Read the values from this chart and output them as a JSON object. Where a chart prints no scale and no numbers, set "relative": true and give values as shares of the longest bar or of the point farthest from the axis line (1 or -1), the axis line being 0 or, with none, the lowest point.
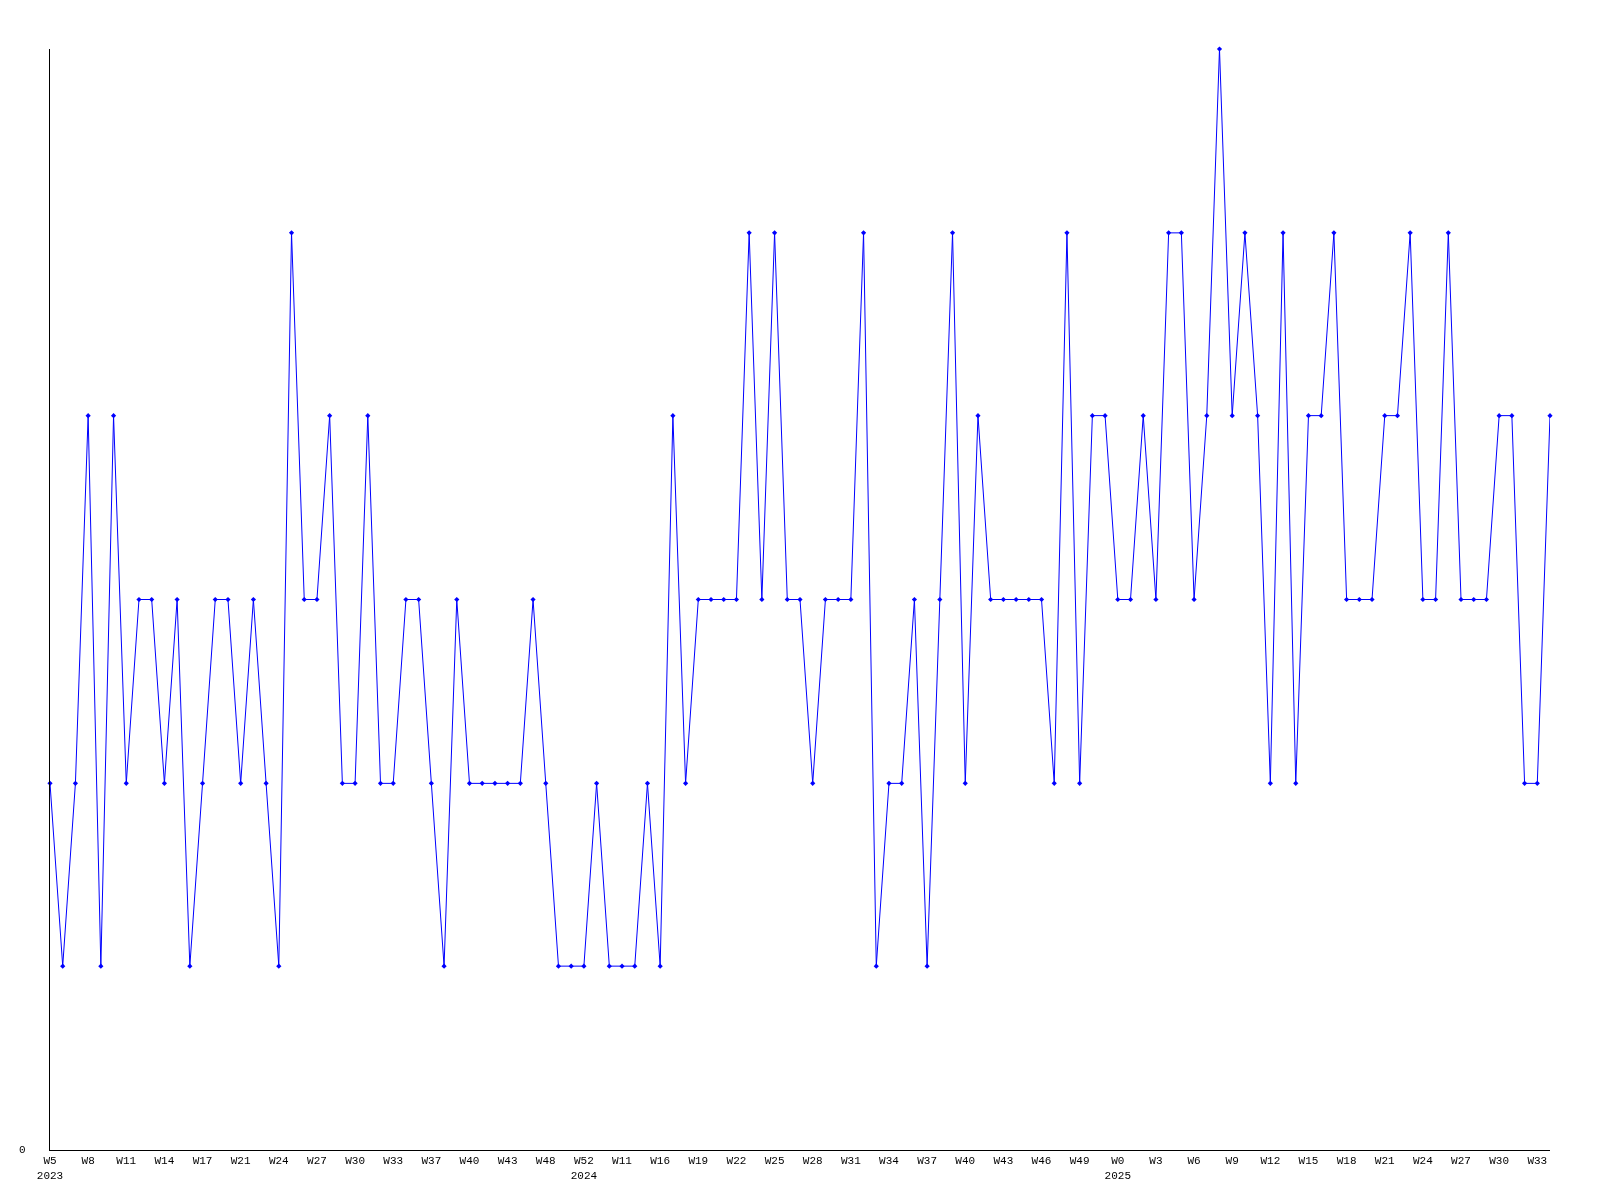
{
  "chart_data": {
    "type": "line",
    "relative": true,
    "grid": false,
    "marker": "diamond",
    "line_style": "solid",
    "annotations": [
      "0"
    ],
    "categories": [
      "W5\n2023",
      null,
      null,
      "W8",
      null,
      null,
      "W11",
      null,
      null,
      "W14",
      null,
      null,
      "W17",
      null,
      null,
      "W21",
      null,
      null,
      "W24",
      null,
      null,
      "W27",
      null,
      null,
      "W30",
      null,
      null,
      "W33",
      null,
      null,
      "W37",
      null,
      null,
      "W40",
      null,
      null,
      "W43",
      null,
      null,
      "W48",
      null,
      null,
      "W52\n2024",
      null,
      null,
      "W11",
      null,
      null,
      "W16",
      null,
      null,
      "W19",
      null,
      null,
      "W22",
      null,
      null,
      "W25",
      null,
      null,
      "W28",
      null,
      null,
      "W31",
      null,
      null,
      "W34",
      null,
      null,
      "W37",
      null,
      null,
      "W40",
      null,
      null,
      "W43",
      null,
      null,
      "W46",
      null,
      null,
      "W49",
      null,
      null,
      "W0\n2025",
      null,
      null,
      "W3",
      null,
      null,
      "W6",
      null,
      null,
      "W9",
      null,
      null,
      "W12",
      null,
      null,
      "W15",
      null,
      null,
      "W18",
      null,
      null,
      "W21",
      null,
      null,
      "W24",
      null,
      null,
      "W27",
      null,
      null,
      "W30",
      null,
      null,
      "W33",
      null
    ],
    "series": [
      {
        "color": "#0000ff",
        "values": [
          0.333,
          0.167,
          0.333,
          0.667,
          0.167,
          0.667,
          0.333,
          0.5,
          0.5,
          0.333,
          0.5,
          0.167,
          0.333,
          0.5,
          0.5,
          0.333,
          0.5,
          0.333,
          0.167,
          0.833,
          0.5,
          0.5,
          0.667,
          0.333,
          0.333,
          0.667,
          0.333,
          0.333,
          0.5,
          0.5,
          0.333,
          0.167,
          0.5,
          0.333,
          0.333,
          0.333,
          0.333,
          0.333,
          0.5,
          0.333,
          0.167,
          0.167,
          0.167,
          0.333,
          0.167,
          0.167,
          0.167,
          0.333,
          0.167,
          0.667,
          0.333,
          0.5,
          0.5,
          0.5,
          0.5,
          0.833,
          0.5,
          0.833,
          0.5,
          0.5,
          0.333,
          0.5,
          0.5,
          0.5,
          0.833,
          0.167,
          0.333,
          0.333,
          0.5,
          0.167,
          0.5,
          0.833,
          0.333,
          0.667,
          0.5,
          0.5,
          0.5,
          0.5,
          0.5,
          0.333,
          0.833,
          0.333,
          0.667,
          0.667,
          0.5,
          0.5,
          0.667,
          0.5,
          0.833,
          0.833,
          0.5,
          0.667,
          1,
          0.667,
          0.833,
          0.667,
          0.333,
          0.833,
          0.333,
          0.667,
          0.667,
          0.833,
          0.5,
          0.5,
          0.5,
          0.667,
          0.667,
          0.833,
          0.5,
          0.5,
          0.833,
          0.5,
          0.5,
          0.5,
          0.667,
          0.667,
          0.333,
          0.333,
          0.667
        ]
      }
    ]
  }
}
